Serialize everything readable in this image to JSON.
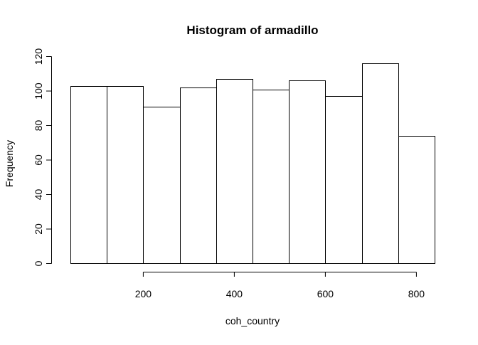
{
  "chart_data": {
    "type": "bar",
    "title": "Histogram of armadillo",
    "xlabel": "coh_country",
    "ylabel": "Frequency",
    "bins": [
      {
        "start": 40,
        "end": 120,
        "value": 103
      },
      {
        "start": 120,
        "end": 200,
        "value": 103
      },
      {
        "start": 200,
        "end": 280,
        "value": 91
      },
      {
        "start": 280,
        "end": 360,
        "value": 102
      },
      {
        "start": 360,
        "end": 440,
        "value": 107
      },
      {
        "start": 440,
        "end": 520,
        "value": 101
      },
      {
        "start": 520,
        "end": 600,
        "value": 106
      },
      {
        "start": 600,
        "end": 680,
        "value": 97
      },
      {
        "start": 680,
        "end": 760,
        "value": 116
      },
      {
        "start": 760,
        "end": 840,
        "value": 74
      }
    ],
    "x_ticks": [
      200,
      400,
      600,
      800
    ],
    "y_ticks": [
      0,
      20,
      40,
      60,
      80,
      100,
      120
    ],
    "xlim": [
      40,
      840
    ],
    "ylim": [
      0,
      120
    ],
    "grid": false
  }
}
